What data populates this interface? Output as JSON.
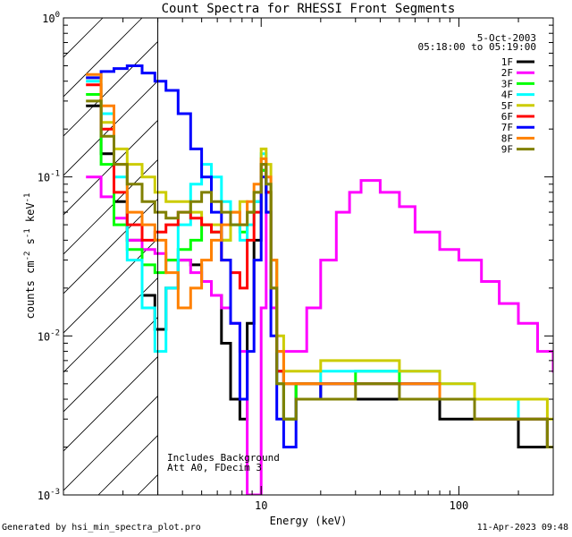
{
  "chart_data": {
    "type": "line",
    "title": "Count Spectra for RHESSI Front Segments",
    "xlabel": "Energy (keV)",
    "ylabel_parts": {
      "base": "counts cm",
      "exp1": "-2",
      "mid": " s",
      "exp2": "-1",
      "mid2": " keV",
      "exp3": "-1"
    },
    "x_scale": "log",
    "y_scale": "log",
    "xlim": [
      1,
      300
    ],
    "ylim": [
      0.001,
      1
    ],
    "x_tick_labels": [
      {
        "value": 10,
        "label": "10"
      },
      {
        "value": 100,
        "label": "100"
      }
    ],
    "y_tick_labels": [
      {
        "value": 1,
        "base": "10",
        "exp": "0"
      },
      {
        "value": 0.1,
        "base": "10",
        "exp": "-1"
      },
      {
        "value": 0.01,
        "base": "10",
        "exp": "-2"
      },
      {
        "value": 0.001,
        "base": "10",
        "exp": "-3"
      }
    ],
    "date_label": "5-Oct-2003",
    "time_label": "05:18:00 to 05:19:00",
    "annotation_lines": [
      "Includes Background",
      "Att A0, FDecim 3"
    ],
    "excluded_region": {
      "x": [
        1,
        3
      ],
      "style": "hatched"
    },
    "legend_placement": "top-right",
    "series": [
      {
        "name": "1F",
        "color": "#000000",
        "x": [
          1.3,
          1.55,
          1.8,
          2.1,
          2.5,
          2.9,
          3.3,
          3.8,
          4.4,
          5.0,
          5.6,
          6.3,
          7.0,
          7.8,
          8.5,
          9.2,
          10.0,
          10.6,
          11.2,
          12.0,
          13.0,
          15.0,
          20.0,
          30.0,
          50.0,
          80.0,
          120.0,
          200.0,
          280.0
        ],
        "y": [
          0.28,
          0.14,
          0.07,
          0.04,
          0.018,
          0.011,
          0.02,
          0.03,
          0.028,
          0.022,
          0.018,
          0.009,
          0.004,
          0.003,
          0.012,
          0.04,
          0.11,
          0.08,
          0.015,
          0.006,
          0.003,
          0.005,
          0.004,
          0.004,
          0.004,
          0.003,
          0.003,
          0.002,
          0.002
        ]
      },
      {
        "name": "2F",
        "color": "#ff00ff",
        "x": [
          1.3,
          1.55,
          1.8,
          2.1,
          2.5,
          2.9,
          3.3,
          3.8,
          4.4,
          5.0,
          5.6,
          6.3,
          7.0,
          7.8,
          8.5,
          9.2,
          10.0,
          10.6,
          11.2,
          12.0,
          14.0,
          17.0,
          20.0,
          24.0,
          28.0,
          32.0,
          40.0,
          50.0,
          60.0,
          80.0,
          100.0,
          130.0,
          160.0,
          200.0,
          250.0,
          300.0
        ],
        "y": [
          0.1,
          0.075,
          0.055,
          0.04,
          0.035,
          0.033,
          0.03,
          0.03,
          0.025,
          0.022,
          0.018,
          0.015,
          0.012,
          0.008,
          0.001,
          0.001,
          0.015,
          0.06,
          0.015,
          0.008,
          0.008,
          0.015,
          0.03,
          0.06,
          0.08,
          0.095,
          0.08,
          0.065,
          0.045,
          0.035,
          0.03,
          0.022,
          0.016,
          0.012,
          0.008,
          0.006
        ]
      },
      {
        "name": "3F",
        "color": "#00ff00",
        "x": [
          1.3,
          1.55,
          1.8,
          2.1,
          2.5,
          2.9,
          3.3,
          3.8,
          4.4,
          5.0,
          5.6,
          6.3,
          7.0,
          7.8,
          8.5,
          9.2,
          10.0,
          10.6,
          11.2,
          12.0,
          13.0,
          15.0,
          20.0,
          30.0,
          50.0,
          80.0,
          120.0,
          200.0,
          280.0
        ],
        "y": [
          0.33,
          0.12,
          0.05,
          0.035,
          0.028,
          0.025,
          0.03,
          0.035,
          0.04,
          0.05,
          0.045,
          0.04,
          0.05,
          0.045,
          0.06,
          0.07,
          0.11,
          0.08,
          0.03,
          0.005,
          0.003,
          0.005,
          0.005,
          0.006,
          0.005,
          0.004,
          0.003,
          0.003,
          0.002
        ]
      },
      {
        "name": "4F",
        "color": "#00ffff",
        "x": [
          1.3,
          1.55,
          1.8,
          2.1,
          2.5,
          2.9,
          3.3,
          3.8,
          4.4,
          5.0,
          5.6,
          6.3,
          7.0,
          7.8,
          8.5,
          9.2,
          10.0,
          10.6,
          11.2,
          12.0,
          13.0,
          15.0,
          20.0,
          30.0,
          50.0,
          80.0,
          120.0,
          200.0,
          280.0
        ],
        "y": [
          0.4,
          0.25,
          0.1,
          0.03,
          0.015,
          0.008,
          0.02,
          0.05,
          0.09,
          0.12,
          0.1,
          0.07,
          0.05,
          0.04,
          0.05,
          0.07,
          0.14,
          0.09,
          0.02,
          0.006,
          0.005,
          0.005,
          0.006,
          0.006,
          0.006,
          0.005,
          0.004,
          0.003,
          0.002
        ]
      },
      {
        "name": "5F",
        "color": "#cccc00",
        "x": [
          1.3,
          1.55,
          1.8,
          2.1,
          2.5,
          2.9,
          3.3,
          3.8,
          4.4,
          5.0,
          5.6,
          6.3,
          7.0,
          7.8,
          8.5,
          9.2,
          10.0,
          10.6,
          11.2,
          12.0,
          13.0,
          15.0,
          20.0,
          30.0,
          50.0,
          80.0,
          120.0,
          200.0,
          280.0
        ],
        "y": [
          0.42,
          0.22,
          0.15,
          0.12,
          0.1,
          0.08,
          0.07,
          0.07,
          0.06,
          0.05,
          0.05,
          0.04,
          0.06,
          0.07,
          0.06,
          0.08,
          0.15,
          0.12,
          0.03,
          0.01,
          0.006,
          0.006,
          0.007,
          0.007,
          0.006,
          0.005,
          0.004,
          0.004,
          0.003
        ]
      },
      {
        "name": "6F",
        "color": "#ff0000",
        "x": [
          1.3,
          1.55,
          1.8,
          2.1,
          2.5,
          2.9,
          3.3,
          3.8,
          4.4,
          5.0,
          5.6,
          6.3,
          7.0,
          7.8,
          8.5,
          9.2,
          10.0,
          10.6,
          11.2,
          12.0,
          13.0,
          15.0,
          20.0,
          30.0,
          50.0,
          80.0,
          120.0,
          200.0,
          280.0
        ],
        "y": [
          0.38,
          0.2,
          0.08,
          0.05,
          0.04,
          0.045,
          0.05,
          0.06,
          0.055,
          0.05,
          0.045,
          0.03,
          0.025,
          0.02,
          0.04,
          0.06,
          0.12,
          0.08,
          0.02,
          0.006,
          0.005,
          0.005,
          0.005,
          0.005,
          0.005,
          0.004,
          0.003,
          0.003,
          0.002
        ]
      },
      {
        "name": "7F",
        "color": "#0000ff",
        "x": [
          1.3,
          1.55,
          1.8,
          2.1,
          2.5,
          2.9,
          3.3,
          3.8,
          4.4,
          5.0,
          5.6,
          6.3,
          7.0,
          7.8,
          8.5,
          9.2,
          10.0,
          10.6,
          11.2,
          12.0,
          13.0,
          15.0,
          20.0,
          30.0,
          50.0,
          80.0,
          120.0,
          200.0,
          280.0
        ],
        "y": [
          0.42,
          0.46,
          0.48,
          0.5,
          0.45,
          0.4,
          0.35,
          0.25,
          0.15,
          0.1,
          0.06,
          0.03,
          0.012,
          0.004,
          0.008,
          0.03,
          0.1,
          0.06,
          0.01,
          0.003,
          0.002,
          0.004,
          0.005,
          0.005,
          0.005,
          0.004,
          0.003,
          0.003,
          0.002
        ]
      },
      {
        "name": "8F",
        "color": "#ff8000",
        "x": [
          1.3,
          1.55,
          1.8,
          2.1,
          2.5,
          2.9,
          3.3,
          3.8,
          4.4,
          5.0,
          5.6,
          6.3,
          7.0,
          7.8,
          8.5,
          9.2,
          10.0,
          10.6,
          11.2,
          12.0,
          13.0,
          15.0,
          20.0,
          30.0,
          50.0,
          80.0,
          120.0,
          200.0,
          280.0
        ],
        "y": [
          0.44,
          0.28,
          0.12,
          0.06,
          0.05,
          0.04,
          0.025,
          0.015,
          0.02,
          0.03,
          0.04,
          0.05,
          0.06,
          0.05,
          0.07,
          0.09,
          0.13,
          0.1,
          0.03,
          0.008,
          0.005,
          0.005,
          0.005,
          0.005,
          0.005,
          0.004,
          0.003,
          0.003,
          0.002
        ]
      },
      {
        "name": "9F",
        "color": "#808000",
        "x": [
          1.3,
          1.55,
          1.8,
          2.1,
          2.5,
          2.9,
          3.3,
          3.8,
          4.4,
          5.0,
          5.6,
          6.3,
          7.0,
          7.8,
          8.5,
          9.2,
          10.0,
          10.6,
          11.2,
          12.0,
          13.0,
          15.0,
          20.0,
          30.0,
          50.0,
          80.0,
          120.0,
          200.0,
          280.0
        ],
        "y": [
          0.3,
          0.18,
          0.12,
          0.09,
          0.07,
          0.06,
          0.055,
          0.06,
          0.07,
          0.08,
          0.07,
          0.06,
          0.05,
          0.05,
          0.06,
          0.08,
          0.12,
          0.09,
          0.02,
          0.005,
          0.003,
          0.004,
          0.004,
          0.005,
          0.004,
          0.004,
          0.003,
          0.003,
          0.002
        ]
      }
    ]
  },
  "footer": {
    "generated_by": "Generated by hsi_min_spectra_plot.pro",
    "timestamp": "11-Apr-2023 09:48"
  }
}
